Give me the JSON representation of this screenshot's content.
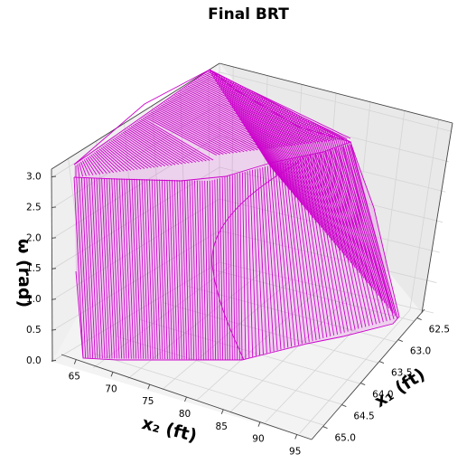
{
  "chart_data": {
    "type": "surface",
    "title": "Final BRT",
    "xlabel": "x₁ (ft)",
    "ylabel": "x₂ (ft)",
    "zlabel": "ω (rad)",
    "x_ticks": [
      "62.5",
      "63.0",
      "63.5",
      "64.0",
      "64.5",
      "65.0"
    ],
    "y_ticks": [
      "65",
      "70",
      "75",
      "80",
      "85",
      "90",
      "95"
    ],
    "z_ticks": [
      "0.0",
      "0.5",
      "1.0",
      "1.5",
      "2.0",
      "2.5",
      "3.0"
    ],
    "xlim": [
      62.3,
      65.3
    ],
    "ylim": [
      63,
      97
    ],
    "zlim": [
      0,
      3.14
    ],
    "surface_color": "#cc00cc",
    "grid": true
  }
}
